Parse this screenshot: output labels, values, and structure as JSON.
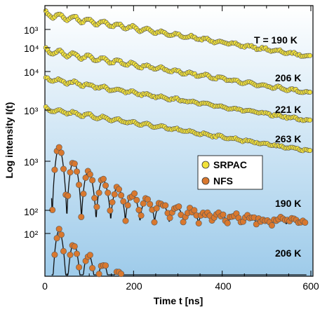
{
  "chart_data": {
    "type": "scatter",
    "xlabel": "Time t [ns]",
    "ylabel": "Log intensity I(t)",
    "xlim": [
      0,
      600
    ],
    "x_ticks": [
      0,
      200,
      400,
      600
    ],
    "x_tick_labels": [
      "0",
      "200",
      "400",
      "600"
    ],
    "grid": false,
    "legend": {
      "placement": "center-right",
      "entries": [
        {
          "name": "SRPAC",
          "color": "#f2e23a"
        },
        {
          "name": "NFS",
          "color": "#d9782e"
        }
      ]
    },
    "background_gradient": [
      "#ffffff",
      "#9ecbea"
    ],
    "y_tick_labels_srpac": [
      "10³",
      "10⁴",
      "10⁴",
      "10³"
    ],
    "y_tick_labels_nfs": [
      "10³",
      "10²",
      "10²"
    ],
    "curve_labels": [
      "T = 190 K",
      "206 K",
      "221 K",
      "263 K",
      "190 K",
      "206 K"
    ],
    "series": [
      {
        "name": "SRPAC",
        "temperature_label": "T = 190 K",
        "t_range": [
          0,
          600
        ],
        "start_log10": 3.55,
        "end_log10": 2.45,
        "beat_period_ns": 33,
        "beat_amplitude": "small"
      },
      {
        "name": "SRPAC",
        "temperature_label": "206 K",
        "t_range": [
          0,
          600
        ],
        "start_log10": 3.45,
        "end_log10": 2.35,
        "beat_period_ns": 33,
        "beat_amplitude": "small"
      },
      {
        "name": "SRPAC",
        "temperature_label": "221 K",
        "t_range": [
          0,
          600
        ],
        "start_log10": 3.35,
        "end_log10": 2.25,
        "beat_period_ns": 33,
        "beat_amplitude": "very small"
      },
      {
        "name": "SRPAC",
        "temperature_label": "263 K",
        "t_range": [
          0,
          600
        ],
        "start_log10": 3.1,
        "end_log10": 2.0,
        "beat_period_ns": 33,
        "beat_amplitude": "very small"
      },
      {
        "name": "NFS",
        "temperature_label": "190 K",
        "t_range": [
          15,
          590
        ],
        "start_log10": 3.05,
        "floor_log10": 2.05,
        "beat_period_ns": 33,
        "beat_amplitude": "large"
      },
      {
        "name": "NFS",
        "temperature_label": "206 K",
        "t_range": [
          15,
          590
        ],
        "start_log10": 2.25,
        "floor_log10": 1.05,
        "beat_period_ns": 33,
        "beat_amplitude": "large"
      }
    ]
  }
}
